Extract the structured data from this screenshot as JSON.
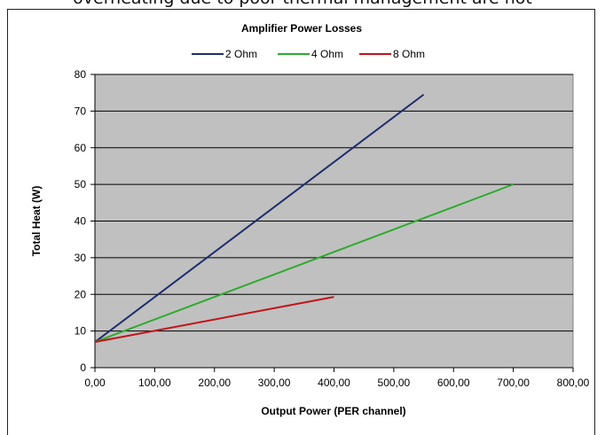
{
  "page": {
    "top_text": "overheating due to poor thermal management are not"
  },
  "colors": {
    "plot_bg": "#c0c0c0",
    "grid": "#000000",
    "series_2ohm": "#1f2d6b",
    "series_4ohm": "#2eab2e",
    "series_8ohm": "#c0141a"
  },
  "chart_data": {
    "type": "line",
    "title": "Amplifier  Power Losses",
    "xlabel": "Output Power (PER channel)",
    "ylabel": "Total Heat (W)",
    "xlim": [
      0,
      800
    ],
    "ylim": [
      0,
      80
    ],
    "x_ticks": [
      0,
      100,
      200,
      300,
      400,
      500,
      600,
      700,
      800
    ],
    "x_tick_labels": [
      "0,00",
      "100,00",
      "200,00",
      "300,00",
      "400,00",
      "500,00",
      "600,00",
      "700,00",
      "800,00"
    ],
    "y_ticks": [
      0,
      10,
      20,
      30,
      40,
      50,
      60,
      70,
      80
    ],
    "y_tick_labels": [
      "0",
      "10",
      "20",
      "30",
      "40",
      "50",
      "60",
      "70",
      "80"
    ],
    "grid": "horizontal",
    "legend": "top-center",
    "series": [
      {
        "name": "2 Ohm",
        "color": "#1f2d6b",
        "x": [
          0,
          550
        ],
        "y": [
          7,
          74.5
        ]
      },
      {
        "name": "4 Ohm",
        "color": "#2eab2e",
        "x": [
          0,
          700
        ],
        "y": [
          7,
          50
        ]
      },
      {
        "name": "8 Ohm",
        "color": "#c0141a",
        "x": [
          0,
          400
        ],
        "y": [
          7,
          19.3
        ]
      }
    ]
  }
}
